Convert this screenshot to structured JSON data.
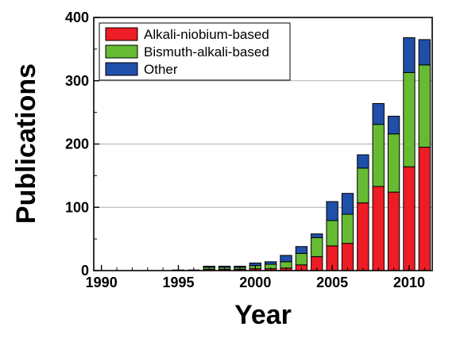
{
  "chart_data": {
    "type": "bar",
    "stacked": true,
    "title": "",
    "xlabel": "Year",
    "ylabel": "Publications",
    "xlim": [
      1989.5,
      2011.5
    ],
    "ylim": [
      0,
      400
    ],
    "x_ticks": [
      1990,
      1995,
      2000,
      2005,
      2010
    ],
    "y_ticks": [
      0,
      100,
      200,
      300,
      400
    ],
    "y_gridlines": true,
    "legend_position": "top-left",
    "categories": [
      1990,
      1991,
      1992,
      1993,
      1994,
      1995,
      1996,
      1997,
      1998,
      1999,
      2000,
      2001,
      2002,
      2003,
      2004,
      2005,
      2006,
      2007,
      2008,
      2009,
      2010,
      2011
    ],
    "series": [
      {
        "name": "Alkali-niobium-based",
        "color": "#ee1c24",
        "values": [
          0,
          0,
          0,
          0,
          0,
          0,
          0,
          2,
          2,
          2,
          3,
          3,
          4,
          9,
          22,
          39,
          43,
          107,
          133,
          124,
          164,
          195
        ]
      },
      {
        "name": "Bismuth-alkali-based",
        "color": "#66bb33",
        "values": [
          0,
          0,
          0,
          0,
          0,
          1,
          1,
          3,
          3,
          3,
          5,
          7,
          10,
          18,
          30,
          40,
          46,
          55,
          98,
          92,
          149,
          130
        ]
      },
      {
        "name": "Other",
        "color": "#1f4fa8",
        "values": [
          0,
          0,
          0,
          0,
          0,
          0,
          0,
          2,
          2,
          2,
          4,
          4,
          10,
          11,
          6,
          30,
          33,
          21,
          33,
          28,
          55,
          40
        ]
      }
    ]
  }
}
